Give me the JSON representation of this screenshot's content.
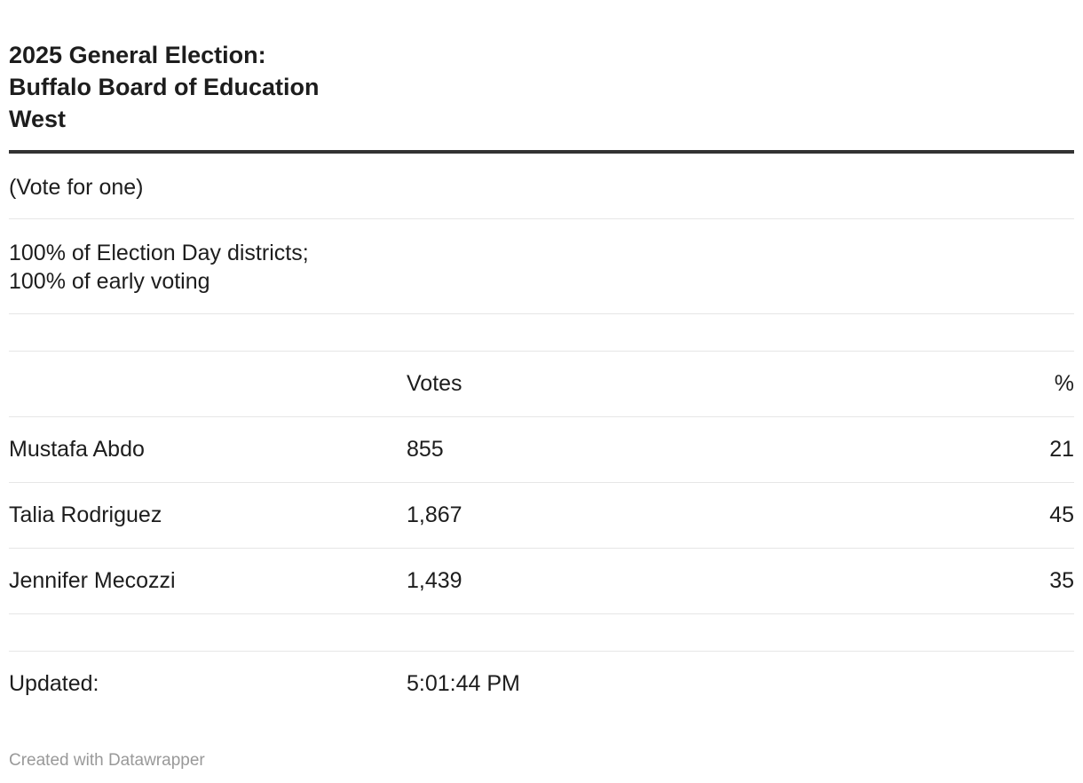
{
  "title_lines": [
    "2025 General Election:",
    "Buffalo Board of Education",
    "West"
  ],
  "note": "(Vote for one)",
  "reporting": [
    "100% of Election Day districts;",
    "100% of early voting"
  ],
  "table": {
    "headers": [
      "",
      "Votes",
      "%"
    ],
    "rows": [
      {
        "name": "Mustafa Abdo",
        "votes": "855",
        "pct": "21"
      },
      {
        "name": "Talia Rodriguez",
        "votes": "1,867",
        "pct": "45"
      },
      {
        "name": "Jennifer Mecozzi",
        "votes": "1,439",
        "pct": "35"
      }
    ]
  },
  "updated": {
    "label": "Updated:",
    "time": "5:01:44 PM"
  },
  "footer": "Created with Datawrapper"
}
